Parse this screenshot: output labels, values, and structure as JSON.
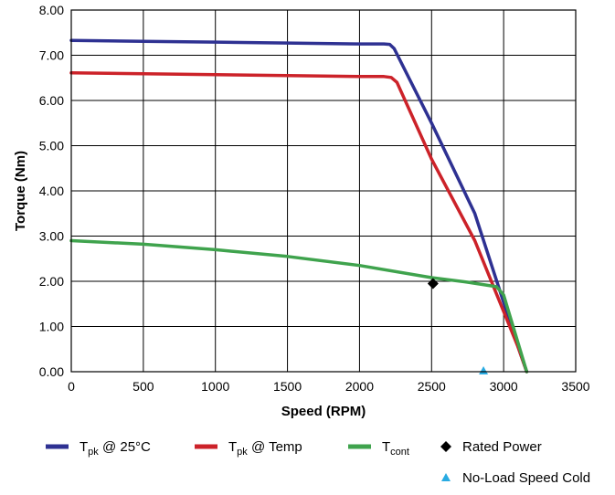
{
  "chart_data": {
    "type": "line",
    "xlabel": "Speed (RPM)",
    "ylabel": "Torque (Nm)",
    "xlim": [
      0,
      3500
    ],
    "ylim": [
      0,
      8
    ],
    "xticks": [
      0,
      500,
      1000,
      1500,
      2000,
      2500,
      3000,
      3500
    ],
    "yticks": [
      0,
      1,
      2,
      3,
      4,
      5,
      6,
      7,
      8
    ],
    "ytick_labels": [
      "0.00",
      "1.00",
      "2.00",
      "3.00",
      "4.00",
      "5.00",
      "6.00",
      "7.00",
      "8.00"
    ],
    "grid": true,
    "legend_position": "bottom",
    "series": [
      {
        "name": "T",
        "subscript": "pk",
        "suffix": " @ 25°C",
        "color": "#2e3192",
        "x": [
          0,
          500,
          1000,
          1500,
          2000,
          2170,
          2210,
          2240,
          2500,
          2800,
          3100,
          3160
        ],
        "y": [
          7.33,
          7.31,
          7.29,
          7.27,
          7.25,
          7.25,
          7.24,
          7.15,
          5.5,
          3.5,
          0.55,
          0.0
        ]
      },
      {
        "name": "T",
        "subscript": "pk",
        "suffix": " @ Temp",
        "color": "#cc2229",
        "x": [
          0,
          500,
          1000,
          1500,
          2000,
          2170,
          2220,
          2260,
          2500,
          2800,
          3100,
          3160
        ],
        "y": [
          6.61,
          6.59,
          6.57,
          6.55,
          6.53,
          6.53,
          6.51,
          6.4,
          4.7,
          2.9,
          0.55,
          0.0
        ]
      },
      {
        "name": "T",
        "subscript": "cont",
        "suffix": "",
        "color": "#3fa34d",
        "x": [
          0,
          500,
          1000,
          1500,
          2000,
          2500,
          2750,
          2950,
          3000,
          3160
        ],
        "y": [
          2.9,
          2.82,
          2.7,
          2.55,
          2.35,
          2.08,
          1.98,
          1.88,
          1.7,
          0.0
        ]
      }
    ],
    "markers": [
      {
        "name": "Rated Power",
        "shape": "diamond",
        "color": "#000000",
        "x": 2510,
        "y": 1.95
      },
      {
        "name": "No-Load Speed Cold",
        "shape": "triangle",
        "color": "#29abe2",
        "x": 2860,
        "y": 0.0
      }
    ]
  }
}
